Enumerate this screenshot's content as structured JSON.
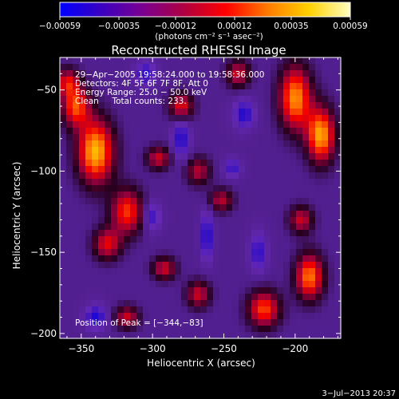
{
  "chart_data": {
    "type": "heatmap",
    "title": "Reconstructed RHESSI Image",
    "xlabel": "Heliocentric X (arcsec)",
    "ylabel": "Heliocentric Y (arcsec)",
    "xlim": [
      -365,
      -168
    ],
    "ylim": [
      -203,
      -30
    ],
    "x_ticks": [
      -350,
      -300,
      -250,
      -200
    ],
    "y_ticks": [
      -50,
      -100,
      -150,
      -200
    ],
    "x_tick_labels": [
      "−350",
      "−300",
      "−250",
      "−200"
    ],
    "y_tick_labels": [
      "−50",
      "−100",
      "−150",
      "−200"
    ],
    "colorbar": {
      "range": [
        -0.00059,
        0.00059
      ],
      "tick_values": [
        -0.00059,
        -0.00035,
        -0.00012,
        0.00012,
        0.00035,
        0.00059
      ],
      "tick_labels": [
        "−0.00059",
        "−0.00035",
        "−0.00012",
        "0.00012",
        "0.00035",
        "0.00059"
      ],
      "units": "(photons cm⁻² s⁻¹ asec⁻²)",
      "stops": [
        "#0000ff",
        "#3a00c0",
        "#7a0090",
        "#b00040",
        "#ff0000",
        "#ff7a00",
        "#ffd000",
        "#ffffc0"
      ]
    },
    "info_lines": [
      "29−Apr−2005 19:58:24.000 to 19:58:36.000",
      "Detectors: 4F 5F 6F 7F 8F, Att 0",
      "Energy Range: 25.0 − 50.0 keV",
      "Clean     Total counts: 233."
    ],
    "peak_label": "Position of Peak = [−344,−83]",
    "peak": [
      -344,
      -83
    ],
    "sources": [
      {
        "x": -340,
        "y": -88,
        "v": 1.0,
        "sx": 9,
        "sy": 14
      },
      {
        "x": -354,
        "y": -60,
        "v": 0.75,
        "sx": 7,
        "sy": 9
      },
      {
        "x": -318,
        "y": -125,
        "v": 0.72,
        "sx": 8,
        "sy": 10
      },
      {
        "x": -332,
        "y": -145,
        "v": 0.6,
        "sx": 7,
        "sy": 7
      },
      {
        "x": -280,
        "y": -60,
        "v": 0.62,
        "sx": 6,
        "sy": 6
      },
      {
        "x": -296,
        "y": -92,
        "v": 0.55,
        "sx": 6,
        "sy": 5
      },
      {
        "x": -268,
        "y": -100,
        "v": 0.5,
        "sx": 6,
        "sy": 6
      },
      {
        "x": -252,
        "y": -118,
        "v": 0.5,
        "sx": 6,
        "sy": 5
      },
      {
        "x": -292,
        "y": -160,
        "v": 0.55,
        "sx": 6,
        "sy": 5
      },
      {
        "x": -268,
        "y": -176,
        "v": 0.55,
        "sx": 6,
        "sy": 6
      },
      {
        "x": -240,
        "y": -40,
        "v": 0.55,
        "sx": 6,
        "sy": 6
      },
      {
        "x": -200,
        "y": -55,
        "v": 0.9,
        "sx": 8,
        "sy": 14
      },
      {
        "x": -182,
        "y": -78,
        "v": 0.95,
        "sx": 7,
        "sy": 12
      },
      {
        "x": -196,
        "y": -130,
        "v": 0.55,
        "sx": 6,
        "sy": 6
      },
      {
        "x": -190,
        "y": -165,
        "v": 0.85,
        "sx": 7,
        "sy": 10
      },
      {
        "x": -222,
        "y": -185,
        "v": 0.75,
        "sx": 8,
        "sy": 8
      },
      {
        "x": -318,
        "y": -190,
        "v": 0.55,
        "sx": 6,
        "sy": 5
      },
      {
        "x": -360,
        "y": -45,
        "v": 0.55,
        "sx": 6,
        "sy": 6
      },
      {
        "x": -305,
        "y": -40,
        "v": -0.5,
        "sx": 5,
        "sy": 5
      },
      {
        "x": -280,
        "y": -80,
        "v": -0.55,
        "sx": 4,
        "sy": 8
      },
      {
        "x": -236,
        "y": -65,
        "v": -0.55,
        "sx": 5,
        "sy": 6
      },
      {
        "x": -262,
        "y": -140,
        "v": -0.6,
        "sx": 3,
        "sy": 10
      },
      {
        "x": -226,
        "y": -150,
        "v": -0.5,
        "sx": 4,
        "sy": 8
      },
      {
        "x": -340,
        "y": -190,
        "v": -0.6,
        "sx": 5,
        "sy": 5
      },
      {
        "x": -300,
        "y": -128,
        "v": -0.45,
        "sx": 4,
        "sy": 6
      },
      {
        "x": -244,
        "y": -98,
        "v": -0.45,
        "sx": 4,
        "sy": 4
      }
    ]
  },
  "footer": {
    "timestamp": "3−Jul−2013 20:37"
  }
}
